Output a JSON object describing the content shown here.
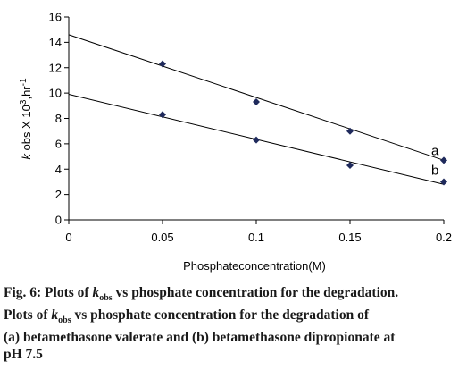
{
  "chart_data": {
    "type": "scatter",
    "xlabel": "Phosphateconcentration(M)",
    "ylabel": "k obs X 10^3,hr^-1",
    "xlim": [
      0,
      0.2
    ],
    "ylim": [
      0,
      16
    ],
    "x_ticks": [
      "0",
      "0.05",
      "0.1",
      "0.15",
      "0.2"
    ],
    "y_ticks": [
      "0",
      "2",
      "4",
      "6",
      "8",
      "10",
      "12",
      "14",
      "16"
    ],
    "grid": false,
    "series": [
      {
        "name": "a",
        "x": [
          0.05,
          0.1,
          0.15,
          0.2
        ],
        "y": [
          12.3,
          9.3,
          7.0,
          4.7
        ],
        "trendline": {
          "intercept": 14.6,
          "slope": -49.5
        },
        "color": "#1f2a5c"
      },
      {
        "name": "b",
        "x": [
          0.05,
          0.1,
          0.15,
          0.2
        ],
        "y": [
          8.3,
          6.3,
          4.3,
          3.0
        ],
        "trendline": {
          "intercept": 9.9,
          "slope": -35.5
        },
        "color": "#1f2a5c"
      }
    ]
  },
  "caption": {
    "lines": [
      [
        "Fig. 6: Plots of ",
        {
          "i": "k"
        },
        {
          "sub": "obs"
        },
        " vs phosphate concentration for the degradation."
      ],
      [
        "Plots of ",
        {
          "i": "k"
        },
        {
          "sub": "obs"
        },
        " vs phosphate concentration for the degradation of"
      ],
      [
        "(a) betamethasone valerate and (b) betamethasone dipropionate at"
      ],
      [
        "pH 7.5"
      ]
    ]
  }
}
